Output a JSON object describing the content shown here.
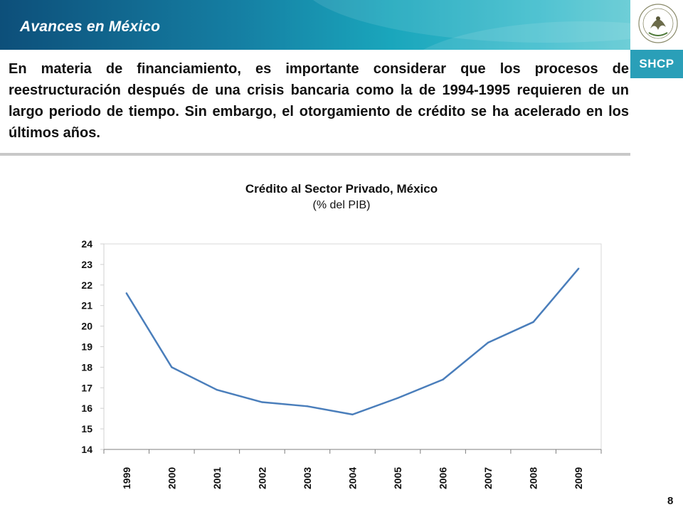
{
  "header": {
    "title": "Avances en México"
  },
  "logo": {
    "brand": "SHCP",
    "seal_text": "ESTADOS UNIDOS MEXICANOS"
  },
  "intro_text": "En materia de financiamiento, es importante considerar que los procesos de reestructuración después de una crisis bancaria como la de 1994-1995 requieren de un largo periodo de tiempo. Sin embargo, el otorgamiento de crédito se ha acelerado en los últimos años.",
  "page_number": "8",
  "colors": {
    "header_dark": "#0d4f7a",
    "header_light": "#5ec9d3",
    "shcp": "#2a9fb8",
    "line": "#4a7ebb"
  },
  "chart_data": {
    "type": "line",
    "title": "Crédito al Sector Privado, México",
    "subtitle": "(% del PIB)",
    "xlabel": "",
    "ylabel": "",
    "categories": [
      "1999",
      "2000",
      "2001",
      "2002",
      "2003",
      "2004",
      "2005",
      "2006",
      "2007",
      "2008",
      "2009"
    ],
    "values": [
      21.6,
      18.0,
      16.9,
      16.3,
      16.1,
      15.7,
      16.5,
      17.4,
      19.2,
      20.2,
      22.8
    ],
    "ylim": [
      14,
      24
    ],
    "yticks": [
      "14",
      "15",
      "16",
      "17",
      "18",
      "19",
      "20",
      "21",
      "22",
      "23",
      "24"
    ],
    "grid": false,
    "legend": "none"
  }
}
